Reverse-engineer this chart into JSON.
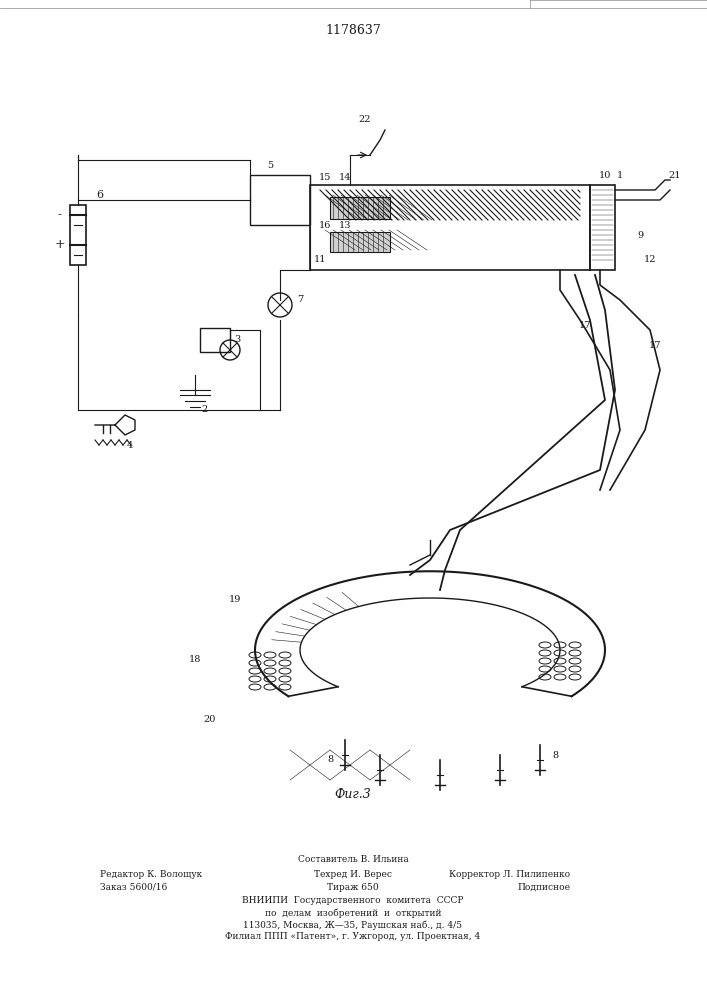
{
  "title": "1178637",
  "fig_label": "Фиг.3",
  "background_color": "#ffffff",
  "line_color": "#1a1a1a",
  "footer_lines": [
    [
      "Редактор К. Волощук",
      "Составитель В. Ильина",
      "Корректор Л. Пилипенко"
    ],
    [
      "Заказ 5600/16",
      "Техред И. Верес",
      "Подписное"
    ],
    [
      "",
      "Тираж 650",
      ""
    ],
    [
      "ВНИИПИ Государственного комитета СССР"
    ],
    [
      "по делам изобретений и открытий"
    ],
    [
      "113035, Москва, Ж—35, Раушская наб., д. 4/5"
    ],
    [
      "Филиал ППП «Патент», г. Ужгород, ул. Проектная, 4"
    ]
  ]
}
